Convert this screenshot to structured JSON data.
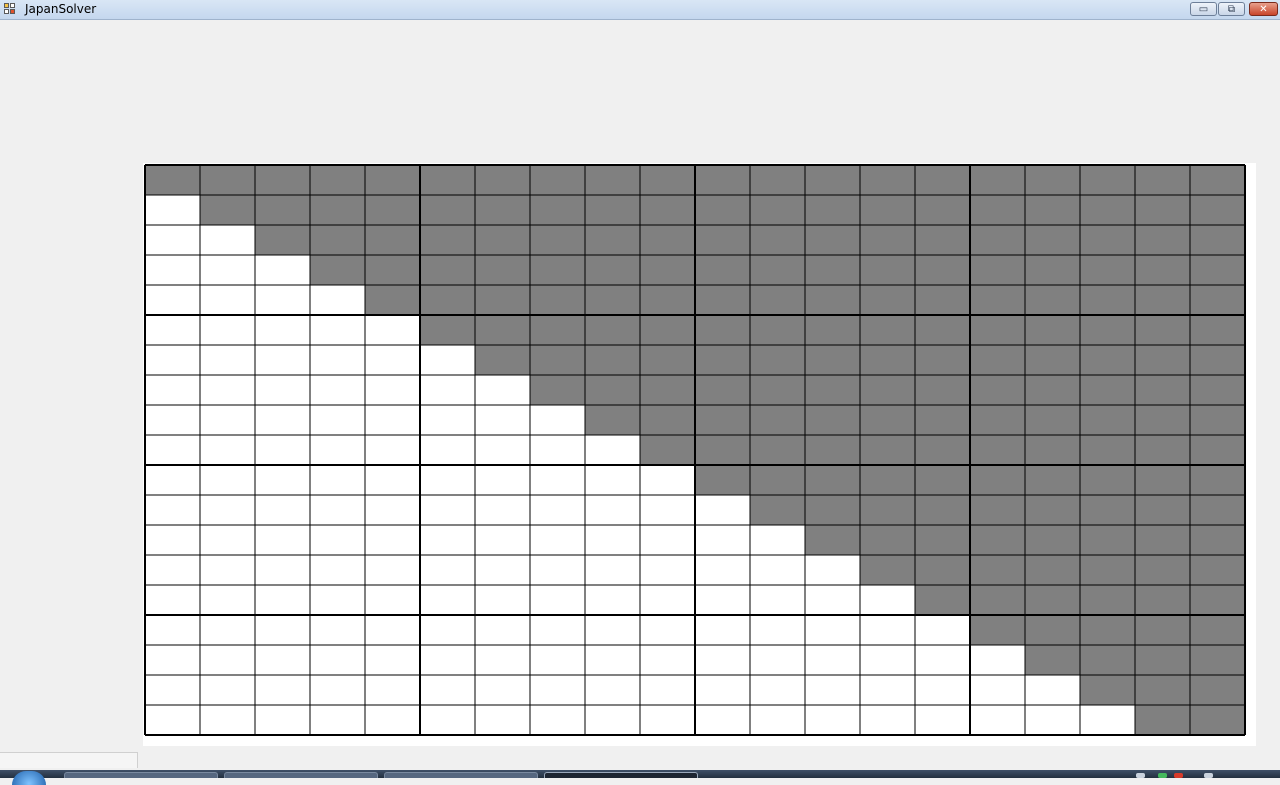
{
  "window": {
    "title": "JapanSolver",
    "minimize_symbol": "▭",
    "maximize_symbol": "⧉",
    "close_symbol": "✕"
  },
  "grid": {
    "rows": 19,
    "cols": 20,
    "block_size": 5,
    "filled_color": "#808080",
    "empty_color": "#ffffff",
    "line_color": "#000000",
    "cells": [
      "11111111111111111111",
      "01111111111111111111",
      "00111111111111111111",
      "00011111111111111111",
      "00001111111111111111",
      "00000111111111111111",
      "00000011111111111111",
      "00000001111111111111",
      "00000000111111111111",
      "00000000011111111111",
      "00000000001111111111",
      "00000000000111111111",
      "00000000000011111111",
      "00000000000001111111",
      "00000000000000111111",
      "00000000000000011111",
      "00000000000000001111",
      "00000000000000000111",
      "00000000000000000011"
    ]
  },
  "taskbar": {
    "start_icon": "windows-orb-icon",
    "buttons": [
      "",
      "",
      "",
      ""
    ],
    "active_button_index": 3
  }
}
